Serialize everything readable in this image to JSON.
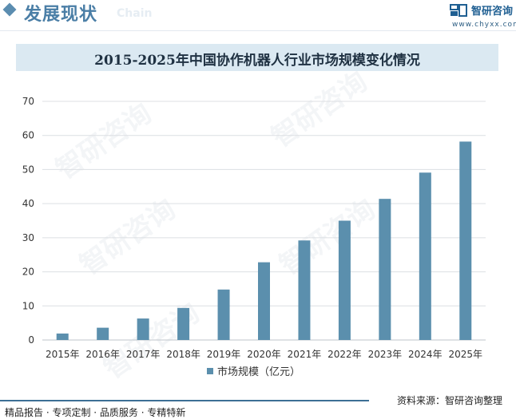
{
  "header": {
    "title": "发展现状",
    "subtitle": "Chain"
  },
  "brand": {
    "name": "智研咨询",
    "url": "www.chyxx.com",
    "accent": "#5b8fad",
    "dark": "#3d6f95"
  },
  "chart_data": {
    "type": "bar",
    "title": "2015-2025年中国协作机器人行业市场规模变化情况",
    "categories": [
      "2015年",
      "2016年",
      "2017年",
      "2018年",
      "2019年",
      "2020年",
      "2021年",
      "2022年",
      "2023年",
      "2024年",
      "2025年"
    ],
    "series": [
      {
        "name": "市场规模（亿元）",
        "values": [
          1.9,
          3.6,
          6.3,
          9.4,
          14.8,
          22.8,
          29.2,
          35.0,
          41.4,
          49.1,
          58.2
        ],
        "color": "#5b8fad"
      }
    ],
    "yticks": [
      0,
      10,
      20,
      30,
      40,
      50,
      60,
      70
    ],
    "ylim": [
      0,
      70
    ],
    "grid": true,
    "legend_position": "bottom"
  },
  "footer": {
    "left": "精品报告 · 专项定制 · 品质服务 · 专精特新",
    "right": "资料来源：智研咨询整理"
  }
}
